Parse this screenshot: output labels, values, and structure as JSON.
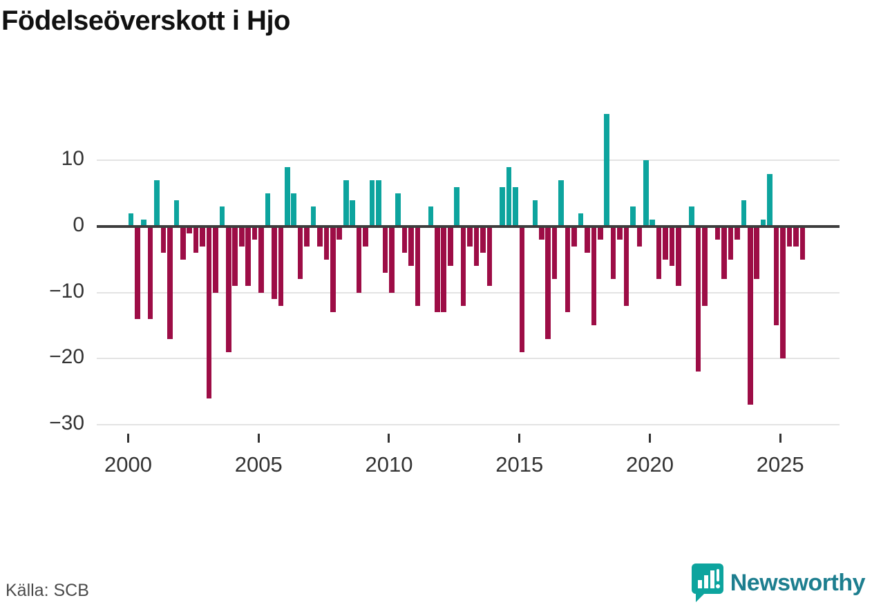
{
  "title": "Födelseöverskott i Hjo",
  "source": "Källa: SCB",
  "brand": {
    "name": "Newsworthy"
  },
  "chart_data": {
    "type": "bar",
    "title": "Födelseöverskott i Hjo",
    "x_unit": "quarter",
    "start_year": 2000,
    "end_year": 2025,
    "x_tick_labels": [
      "2000",
      "2005",
      "2010",
      "2015",
      "2020",
      "2025"
    ],
    "y_tick_values": [
      10,
      0,
      -10,
      -20,
      -30
    ],
    "y_tick_labels": [
      "10",
      "0",
      "−10",
      "−20",
      "−30"
    ],
    "ylim": [
      -30,
      18
    ],
    "grid": "horizontal",
    "legend": "none",
    "colors": {
      "positive": "#0da49e",
      "negative": "#9d0d46"
    },
    "series": [
      {
        "name": "Födelseöverskott per kvartal",
        "values": [
          2,
          -14,
          1,
          -14,
          7,
          -4,
          -17,
          4,
          -5,
          -1,
          -4,
          -3,
          -26,
          -10,
          3,
          -19,
          -9,
          -3,
          -9,
          -2,
          -10,
          5,
          -11,
          -12,
          9,
          5,
          -8,
          -3,
          3,
          -3,
          -5,
          -13,
          -2,
          7,
          4,
          -10,
          -3,
          7,
          7,
          -7,
          -10,
          5,
          -4,
          -6,
          -12,
          0,
          3,
          -13,
          -13,
          -6,
          6,
          -12,
          -3,
          -6,
          -4,
          -9,
          0,
          6,
          9,
          6,
          -19,
          0,
          4,
          -2,
          -17,
          -8,
          7,
          -13,
          -3,
          2,
          -4,
          -15,
          -2,
          17,
          -8,
          -2,
          -12,
          3,
          -3,
          10,
          1,
          -8,
          -5,
          -6,
          -9,
          0,
          3,
          -22,
          -12,
          0,
          -2,
          -8,
          -5,
          -2,
          4,
          -27,
          -8,
          1,
          8,
          -15,
          -20,
          -3,
          -3,
          -5
        ]
      }
    ]
  }
}
